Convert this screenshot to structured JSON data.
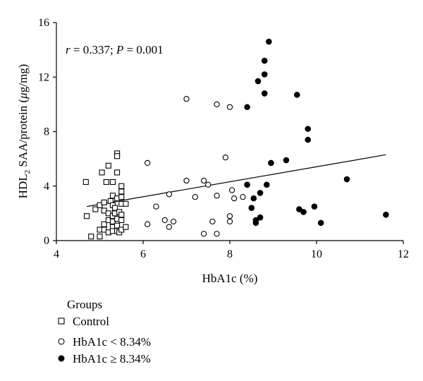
{
  "chart_data": {
    "type": "scatter",
    "annotation": {
      "r_label": "r",
      "r_value": " = 0.337; ",
      "p_label": "P",
      "p_value": " = 0.001"
    },
    "xlabel": "HbA1c (%)",
    "ylabel": {
      "prefix": "HDL",
      "subscript": "2",
      "middle": " SAA/protein (",
      "mu": "μ",
      "suffix": "g/mg)"
    },
    "xlim": [
      4,
      12
    ],
    "ylim": [
      0,
      16
    ],
    "xticks": [
      "4",
      "6",
      "8",
      "10",
      "12"
    ],
    "yticks": [
      "0",
      "4",
      "8",
      "12",
      "16"
    ],
    "legend": {
      "title": "Groups",
      "position": "bottom-left",
      "entries": [
        "Control",
        "HbA1c < 8.34%",
        "HbA1c ≥ 8.34%"
      ]
    },
    "trendline": {
      "x": [
        4.7,
        11.6
      ],
      "y": [
        2.5,
        6.3
      ]
    },
    "series": [
      {
        "name": "Control",
        "marker": "square-open",
        "points": [
          [
            4.68,
            4.3
          ],
          [
            4.7,
            1.8
          ],
          [
            4.8,
            0.3
          ],
          [
            4.9,
            2.3
          ],
          [
            5.0,
            2.6
          ],
          [
            5.0,
            0.8
          ],
          [
            5.0,
            0.3
          ],
          [
            5.05,
            5.0
          ],
          [
            5.1,
            2.8
          ],
          [
            5.1,
            2.2
          ],
          [
            5.1,
            1.2
          ],
          [
            5.1,
            0.8
          ],
          [
            5.15,
            4.3
          ],
          [
            5.2,
            5.5
          ],
          [
            5.2,
            2.0
          ],
          [
            5.2,
            1.5
          ],
          [
            5.2,
            0.6
          ],
          [
            5.25,
            2.9
          ],
          [
            5.3,
            4.3
          ],
          [
            5.3,
            3.3
          ],
          [
            5.3,
            2.6
          ],
          [
            5.3,
            1.8
          ],
          [
            5.3,
            1.4
          ],
          [
            5.3,
            1.0
          ],
          [
            5.3,
            0.7
          ],
          [
            5.35,
            2.4
          ],
          [
            5.35,
            2.0
          ],
          [
            5.4,
            6.4
          ],
          [
            5.4,
            6.2
          ],
          [
            5.4,
            5.0
          ],
          [
            5.4,
            3.1
          ],
          [
            5.4,
            1.6
          ],
          [
            5.4,
            1.1
          ],
          [
            5.4,
            0.7
          ],
          [
            5.45,
            2.1
          ],
          [
            5.45,
            0.6
          ],
          [
            5.5,
            4.0
          ],
          [
            5.5,
            3.6
          ],
          [
            5.5,
            3.2
          ],
          [
            5.5,
            2.7
          ],
          [
            5.5,
            1.9
          ],
          [
            5.5,
            1.5
          ],
          [
            5.5,
            0.8
          ],
          [
            5.6,
            2.7
          ],
          [
            5.6,
            1.0
          ]
        ]
      },
      {
        "name": "HbA1c < 8.34%",
        "marker": "circle-open",
        "points": [
          [
            6.1,
            5.7
          ],
          [
            6.1,
            1.2
          ],
          [
            6.3,
            2.5
          ],
          [
            6.5,
            1.5
          ],
          [
            6.6,
            3.4
          ],
          [
            6.6,
            1.0
          ],
          [
            6.7,
            1.4
          ],
          [
            7.0,
            10.4
          ],
          [
            7.0,
            4.4
          ],
          [
            7.2,
            3.2
          ],
          [
            7.4,
            4.4
          ],
          [
            7.4,
            0.5
          ],
          [
            7.5,
            4.1
          ],
          [
            7.6,
            1.4
          ],
          [
            7.7,
            10.0
          ],
          [
            7.7,
            3.3
          ],
          [
            7.7,
            0.5
          ],
          [
            7.9,
            6.1
          ],
          [
            8.0,
            9.8
          ],
          [
            8.0,
            1.8
          ],
          [
            8.0,
            1.4
          ],
          [
            8.05,
            3.7
          ],
          [
            8.1,
            3.1
          ],
          [
            8.3,
            3.2
          ]
        ]
      },
      {
        "name": "HbA1c ≥ 8.34%",
        "marker": "circle-filled",
        "points": [
          [
            8.4,
            4.1
          ],
          [
            8.4,
            9.8
          ],
          [
            8.5,
            2.4
          ],
          [
            8.55,
            3.1
          ],
          [
            8.6,
            1.5
          ],
          [
            8.6,
            1.3
          ],
          [
            8.65,
            11.7
          ],
          [
            8.7,
            3.5
          ],
          [
            8.7,
            1.7
          ],
          [
            8.8,
            13.2
          ],
          [
            8.8,
            12.2
          ],
          [
            8.8,
            10.8
          ],
          [
            8.85,
            4.1
          ],
          [
            8.9,
            14.6
          ],
          [
            8.95,
            5.7
          ],
          [
            9.3,
            5.9
          ],
          [
            9.55,
            10.7
          ],
          [
            9.6,
            2.3
          ],
          [
            9.7,
            2.1
          ],
          [
            9.8,
            8.2
          ],
          [
            9.8,
            7.4
          ],
          [
            9.95,
            2.5
          ],
          [
            10.1,
            1.3
          ],
          [
            10.7,
            4.5
          ],
          [
            11.6,
            1.9
          ]
        ]
      }
    ]
  }
}
